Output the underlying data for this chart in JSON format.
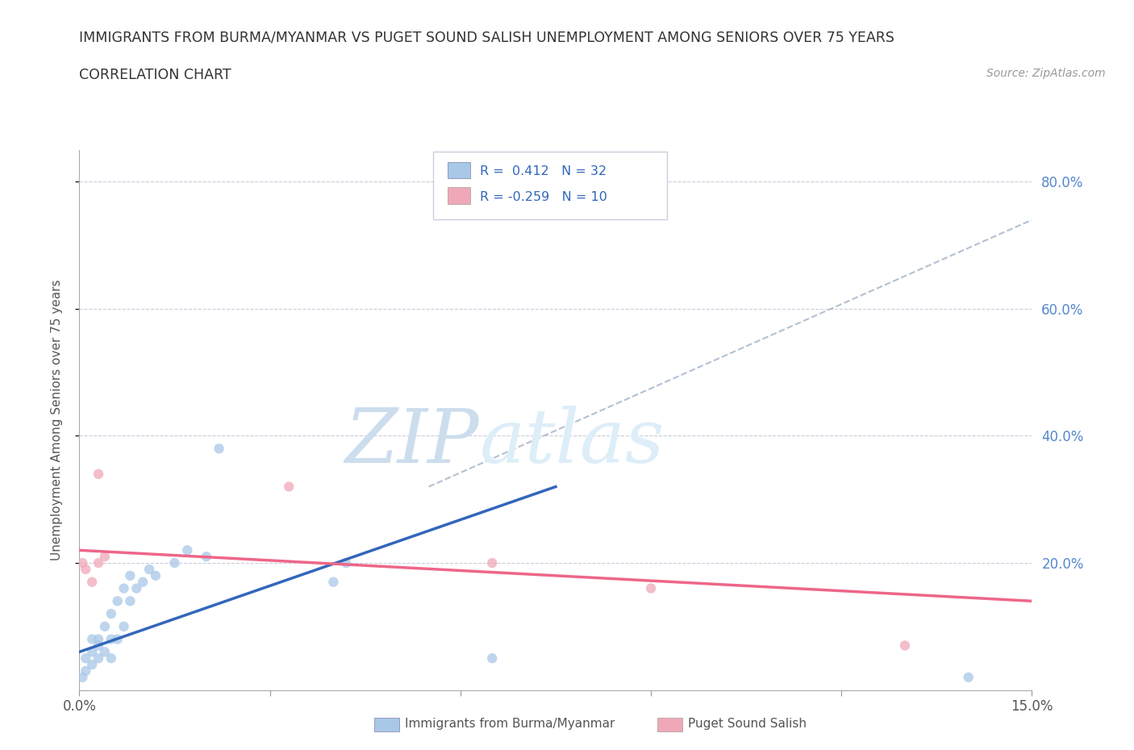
{
  "title_line1": "IMMIGRANTS FROM BURMA/MYANMAR VS PUGET SOUND SALISH UNEMPLOYMENT AMONG SENIORS OVER 75 YEARS",
  "title_line2": "CORRELATION CHART",
  "source_text": "Source: ZipAtlas.com",
  "ylabel": "Unemployment Among Seniors over 75 years",
  "watermark_zip": "ZIP",
  "watermark_atlas": "atlas",
  "xlim": [
    0.0,
    0.15
  ],
  "ylim": [
    0.0,
    0.85
  ],
  "color_blue": "#a8c8e8",
  "color_pink": "#f0a8b8",
  "line_color_blue": "#3366bb",
  "line_color_pink": "#ee6688",
  "line_color_trend": "#aabbcc",
  "blue_scatter_x": [
    0.0005,
    0.001,
    0.001,
    0.002,
    0.002,
    0.002,
    0.003,
    0.003,
    0.003,
    0.004,
    0.004,
    0.005,
    0.005,
    0.005,
    0.006,
    0.006,
    0.007,
    0.007,
    0.008,
    0.008,
    0.009,
    0.01,
    0.011,
    0.012,
    0.015,
    0.017,
    0.02,
    0.022,
    0.04,
    0.042,
    0.065,
    0.14
  ],
  "blue_scatter_y": [
    0.02,
    0.03,
    0.05,
    0.04,
    0.06,
    0.08,
    0.05,
    0.07,
    0.08,
    0.06,
    0.1,
    0.05,
    0.08,
    0.12,
    0.08,
    0.14,
    0.1,
    0.16,
    0.14,
    0.18,
    0.16,
    0.17,
    0.19,
    0.18,
    0.2,
    0.22,
    0.21,
    0.38,
    0.17,
    0.2,
    0.05,
    0.02
  ],
  "pink_scatter_x": [
    0.0005,
    0.001,
    0.002,
    0.003,
    0.003,
    0.004,
    0.033,
    0.065,
    0.09,
    0.13
  ],
  "pink_scatter_y": [
    0.2,
    0.19,
    0.17,
    0.34,
    0.2,
    0.21,
    0.32,
    0.2,
    0.16,
    0.07
  ],
  "blue_trend_x": [
    0.0,
    0.075
  ],
  "blue_trend_y": [
    0.06,
    0.32
  ],
  "pink_trend_x": [
    0.0,
    0.15
  ],
  "pink_trend_y": [
    0.22,
    0.14
  ],
  "dashed_trend_x": [
    0.055,
    0.15
  ],
  "dashed_trend_y": [
    0.32,
    0.74
  ],
  "background_color": "#ffffff",
  "grid_color": "#ccccdd",
  "grid_linestyle": "--"
}
